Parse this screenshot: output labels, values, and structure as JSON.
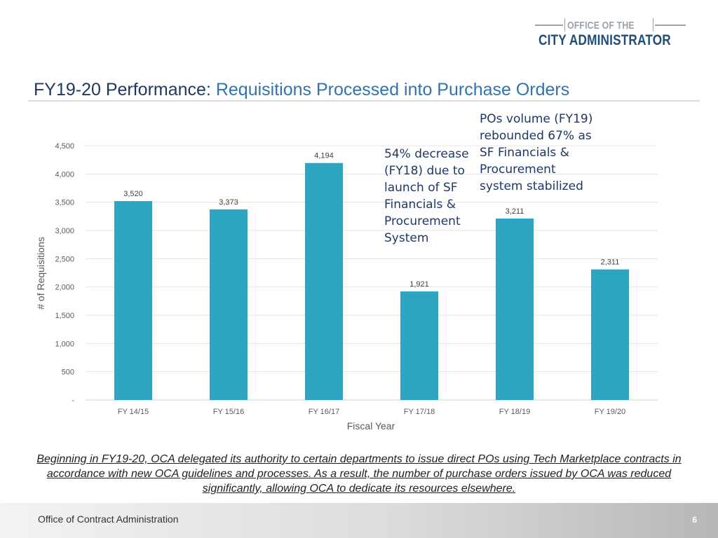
{
  "logo": {
    "line1": "OFFICE OF THE",
    "line2": "CITY ADMINISTRATOR"
  },
  "slide": {
    "title_lead": "FY19-20 Performance:",
    "title_rest": " Requisitions Processed into Purchase Orders",
    "note1": "54% decrease (FY18) due to launch of SF Financials & Procurement System",
    "note2": "POs volume (FY19) rebounded 67% as SF Financials & Procurement system stabilized",
    "caption": "Beginning in FY19-20, OCA delegated its authority to certain departments to issue direct POs using Tech Marketplace contracts in accordance with new OCA guidelines and processes. As a result, the number of purchase orders issued by OCA was reduced significantly, allowing OCA to dedicate its resources elsewhere."
  },
  "footer": {
    "org": "Office of Contract Administration",
    "page": "6"
  },
  "colors": {
    "bar": "#2ea5c0",
    "title_lead": "#1f3864",
    "title_rest": "#2e74b5",
    "logo_blue": "#1f4e79"
  },
  "chart_data": {
    "type": "bar",
    "title": "",
    "categories": [
      "FY 14/15",
      "FY 15/16",
      "FY 16/17",
      "FY 17/18",
      "FY 18/19",
      "FY 19/20"
    ],
    "values": [
      3520,
      3373,
      4194,
      1921,
      3211,
      2311
    ],
    "value_labels": [
      "3,520",
      "3,373",
      "4,194",
      "1,921",
      "3,211",
      "2,311"
    ],
    "xlabel": "Fiscal Year",
    "ylabel": "# of Requisitions",
    "ylim": [
      0,
      4500
    ],
    "yticks": [
      0,
      500,
      1000,
      1500,
      2000,
      2500,
      3000,
      3500,
      4000,
      4500
    ],
    "ytick_labels": [
      "-",
      "500",
      "1,000",
      "1,500",
      "2,000",
      "2,500",
      "3,000",
      "3,500",
      "4,000",
      "4,500"
    ],
    "grid": true,
    "legend": "none"
  }
}
